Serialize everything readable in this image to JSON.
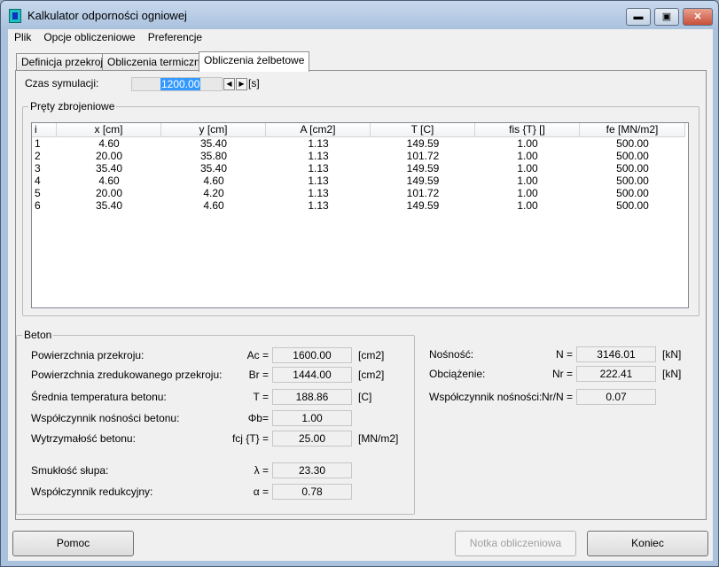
{
  "window": {
    "title": "Kalkulator odporności ogniowej"
  },
  "menu": [
    "Plik",
    "Opcje obliczeniowe",
    "Preferencje"
  ],
  "tabs": [
    "Definicja przekroju",
    "Obliczenia termiczne",
    "Obliczenia żelbetowe"
  ],
  "active_tab": 2,
  "sim": {
    "label": "Czas symulacji:",
    "value": "1200.00",
    "unit": "[s]"
  },
  "bars": {
    "title": "Pręty zbrojeniowe",
    "columns": [
      "i",
      "x [cm]",
      "y [cm]",
      "A [cm2]",
      "T [C]",
      "fis {T} []",
      "fe [MN/m2]"
    ],
    "rows": [
      [
        "1",
        "4.60",
        "35.40",
        "1.13",
        "149.59",
        "1.00",
        "500.00"
      ],
      [
        "2",
        "20.00",
        "35.80",
        "1.13",
        "101.72",
        "1.00",
        "500.00"
      ],
      [
        "3",
        "35.40",
        "35.40",
        "1.13",
        "149.59",
        "1.00",
        "500.00"
      ],
      [
        "4",
        "4.60",
        "4.60",
        "1.13",
        "149.59",
        "1.00",
        "500.00"
      ],
      [
        "5",
        "20.00",
        "4.20",
        "1.13",
        "101.72",
        "1.00",
        "500.00"
      ],
      [
        "6",
        "35.40",
        "4.60",
        "1.13",
        "149.59",
        "1.00",
        "500.00"
      ]
    ]
  },
  "beton": {
    "title": "Beton",
    "rows": [
      {
        "label": "Powierzchnia przekroju:",
        "sym": "Ac =",
        "value": "1600.00",
        "unit": "[cm2]"
      },
      {
        "label": "Powierzchnia zredukowanego przekroju:",
        "sym": "Br =",
        "value": "1444.00",
        "unit": "[cm2]"
      },
      {
        "label": "Średnia temperatura betonu:",
        "sym": "T =",
        "value": "188.86",
        "unit": "[C]"
      },
      {
        "label": "Współczynnik nośności betonu:",
        "sym": "Φb=",
        "value": "1.00",
        "unit": ""
      },
      {
        "label": "Wytrzymałość betonu:",
        "sym": "fcj {T} =",
        "value": "25.00",
        "unit": "[MN/m2]"
      },
      {
        "label": "Smukłość słupa:",
        "sym": "λ =",
        "value": "23.30",
        "unit": ""
      },
      {
        "label": "Współczynnik redukcyjny:",
        "sym": "α =",
        "value": "0.78",
        "unit": ""
      }
    ]
  },
  "results": [
    {
      "label": "Nośność:",
      "sym": "N =",
      "value": "3146.01",
      "unit": "[kN]"
    },
    {
      "label": "Obciążenie:",
      "sym": "Nr =",
      "value": "222.41",
      "unit": "[kN]"
    },
    {
      "label": "Współczynnik nośności:",
      "sym": "Nr/N =",
      "value": "0.07",
      "unit": ""
    }
  ],
  "buttons": {
    "help": "Pomoc",
    "note": "Notka obliczeniowa",
    "end": "Koniec"
  }
}
